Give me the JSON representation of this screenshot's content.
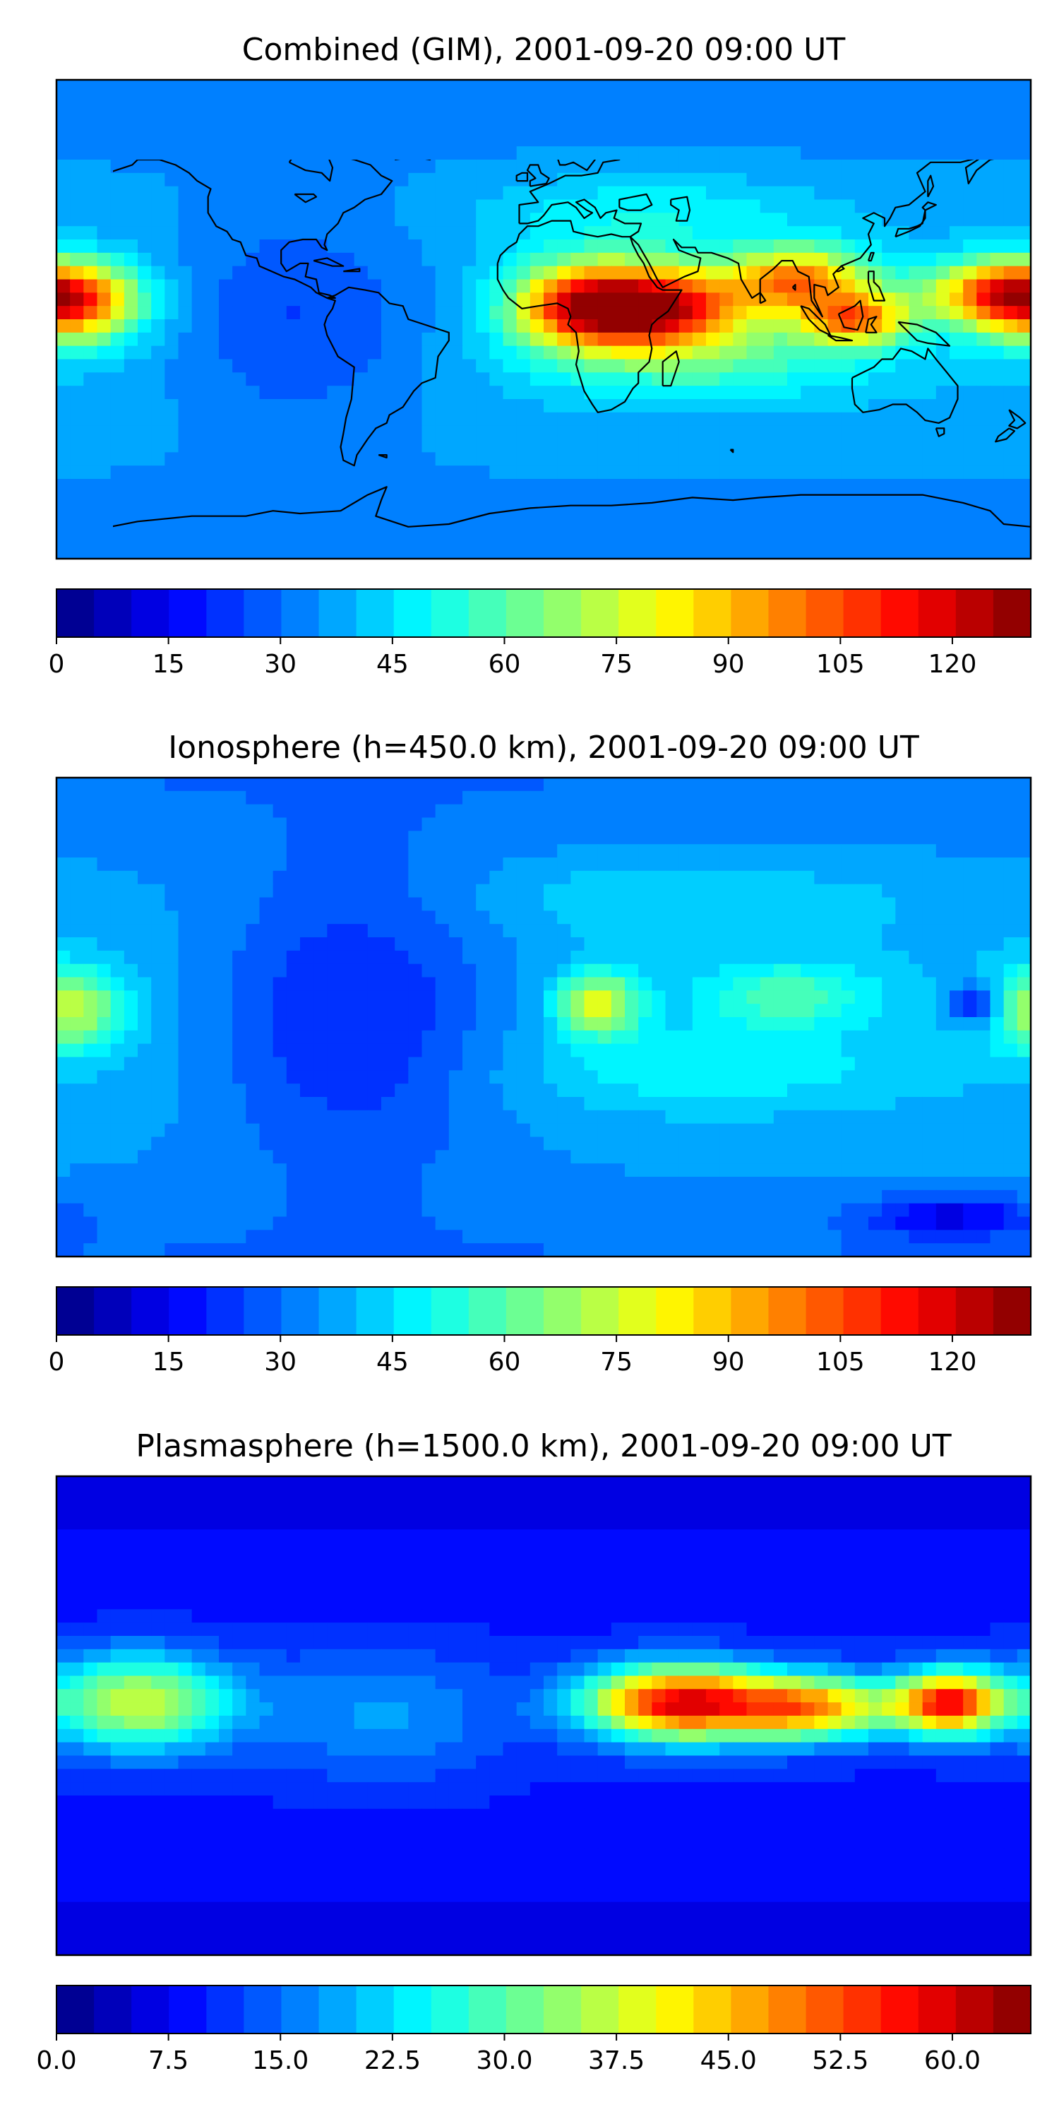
{
  "figure": {
    "panels": [
      {
        "title": "Combined (GIM), 2001-09-20 09:00 UT",
        "colorbar": {
          "ticks": [
            "0",
            "15",
            "30",
            "45",
            "60",
            "75",
            "90",
            "105",
            "120"
          ],
          "tick_values": [
            0,
            15,
            30,
            45,
            60,
            75,
            90,
            105,
            120
          ],
          "range": [
            0,
            130.5
          ],
          "levels": 26
        },
        "blobs": [
          {
            "lon": 40,
            "lat": 5,
            "rlon": 35,
            "rlat": 15,
            "v": 85
          },
          {
            "lon": 12,
            "lat": 5,
            "rlon": 25,
            "rlat": 16,
            "v": 45
          },
          {
            "lon": 95,
            "lat": 15,
            "rlon": 25,
            "rlat": 12,
            "v": 55
          },
          {
            "lon": 115,
            "lat": 0,
            "rlon": 20,
            "rlat": 10,
            "v": 55
          },
          {
            "lon": 170,
            "lat": 10,
            "rlon": 30,
            "rlat": 12,
            "v": 55
          },
          {
            "lon": -175,
            "lat": 5,
            "rlon": 25,
            "rlat": 15,
            "v": 50
          },
          {
            "lon": 60,
            "lat": -15,
            "rlon": 60,
            "rlat": 15,
            "v": 18
          },
          {
            "lon": 40,
            "lat": 40,
            "rlon": 60,
            "rlat": 15,
            "v": 12
          },
          {
            "lon": -90,
            "lat": 0,
            "rlon": 50,
            "rlat": 40,
            "v": -15
          }
        ],
        "base": 30,
        "lat_factor": 10
      },
      {
        "title": "Ionosphere  (h=450.0 km), 2001-09-20 09:00 UT",
        "colorbar": {
          "ticks": [
            "0",
            "15",
            "30",
            "45",
            "60",
            "75",
            "90",
            "105",
            "120"
          ],
          "tick_values": [
            0,
            15,
            30,
            45,
            60,
            75,
            90,
            105,
            120
          ],
          "range": [
            0,
            130.5
          ],
          "levels": 26
        },
        "blobs": [
          {
            "lon": 20,
            "lat": 5,
            "rlon": 15,
            "rlat": 12,
            "v": 40
          },
          {
            "lon": 90,
            "lat": 8,
            "rlon": 30,
            "rlat": 12,
            "v": 20
          },
          {
            "lon": -175,
            "lat": 3,
            "rlon": 20,
            "rlat": 15,
            "v": 35
          },
          {
            "lon": 160,
            "lat": 5,
            "rlon": 10,
            "rlat": 8,
            "v": -25
          },
          {
            "lon": -70,
            "lat": 0,
            "rlon": 55,
            "rlat": 55,
            "v": -20
          },
          {
            "lon": 150,
            "lat": -75,
            "rlon": 30,
            "rlat": 8,
            "v": -20
          },
          {
            "lon": 60,
            "lat": -20,
            "rlon": 70,
            "rlat": 15,
            "v": 10
          },
          {
            "lon": 50,
            "lat": 45,
            "rlon": 80,
            "rlat": 15,
            "v": 8
          }
        ],
        "base": 30,
        "lat_factor": 10
      },
      {
        "title": "Plasmasphere (h=1500.0 km), 2001-09-20 09:00 UT",
        "colorbar": {
          "ticks": [
            "0.0",
            "7.5",
            "15.0",
            "22.5",
            "30.0",
            "37.5",
            "45.0",
            "52.5",
            "60.0"
          ],
          "tick_values": [
            0,
            7.5,
            15,
            22.5,
            30,
            37.5,
            45,
            52.5,
            60
          ],
          "range": [
            0,
            65.25
          ],
          "levels": 26
        },
        "blobs": [
          {
            "lon": 50,
            "lat": 5,
            "rlon": 35,
            "rlat": 14,
            "v": 48
          },
          {
            "lon": 100,
            "lat": 3,
            "rlon": 30,
            "rlat": 12,
            "v": 35
          },
          {
            "lon": 150,
            "lat": 5,
            "rlon": 20,
            "rlat": 12,
            "v": 45
          },
          {
            "lon": -150,
            "lat": 5,
            "rlon": 35,
            "rlat": 18,
            "v": 28
          },
          {
            "lon": -60,
            "lat": 0,
            "rlon": 45,
            "rlat": 25,
            "v": 8
          }
        ],
        "base": 6,
        "lat_factor": 4
      }
    ]
  }
}
